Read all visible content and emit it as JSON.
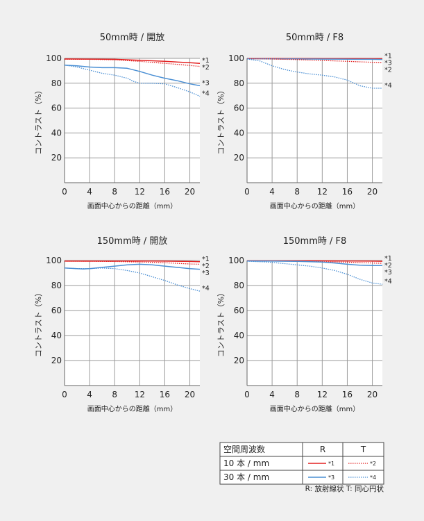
{
  "chart_data": [
    {
      "type": "line",
      "title": "50mm時 / 開放",
      "xlabel": "画面中心からの距離（mm）",
      "ylabel": "コントラスト（%）",
      "xticks": [
        0,
        4,
        8,
        12,
        16,
        20
      ],
      "yticks": [
        20,
        40,
        60,
        80,
        100
      ],
      "xlim": [
        0,
        21.6
      ],
      "ylim": [
        0,
        100
      ],
      "series": [
        {
          "name": "*1",
          "style": "solid",
          "color": "#e32020",
          "x": [
            0,
            4,
            8,
            12,
            16,
            20,
            21.6
          ],
          "y": [
            99.5,
            99.4,
            99.2,
            98.5,
            97.6,
            96.5,
            96
          ]
        },
        {
          "name": "*2",
          "style": "dotted",
          "color": "#e32020",
          "x": [
            0,
            4,
            8,
            12,
            16,
            20,
            21.6
          ],
          "y": [
            99.3,
            99.2,
            98.8,
            97.6,
            96,
            94.3,
            93.5
          ]
        },
        {
          "name": "*3",
          "style": "solid",
          "color": "#4a8fd4",
          "x": [
            0,
            2,
            4,
            6,
            8,
            10,
            12,
            14,
            16,
            18,
            20,
            21.6
          ],
          "y": [
            94.5,
            94,
            93,
            92.5,
            92.5,
            92,
            89.5,
            86.5,
            84,
            82,
            79.5,
            78
          ]
        },
        {
          "name": "*4",
          "style": "dotted",
          "color": "#4a8fd4",
          "x": [
            0,
            2,
            4,
            6,
            8,
            10,
            11,
            12,
            14,
            16,
            18,
            20,
            21.6
          ],
          "y": [
            94.5,
            93,
            90.5,
            88,
            86.5,
            84,
            81.5,
            80,
            80,
            79.5,
            76.5,
            73,
            69.5
          ]
        }
      ]
    },
    {
      "type": "line",
      "title": "50mm時 / F8",
      "xlabel": "画面中心からの距離（mm）",
      "ylabel": "コントラスト（%）",
      "xticks": [
        0,
        4,
        8,
        12,
        16,
        20
      ],
      "yticks": [
        20,
        40,
        60,
        80,
        100
      ],
      "xlim": [
        0,
        21.6
      ],
      "ylim": [
        0,
        100
      ],
      "series": [
        {
          "name": "*1",
          "style": "solid",
          "color": "#e32020",
          "x": [
            0,
            4,
            8,
            12,
            16,
            20,
            21.6
          ],
          "y": [
            99.9,
            99.9,
            99.9,
            99.8,
            99.8,
            99.7,
            99.7
          ]
        },
        {
          "name": "*3",
          "style": "solid",
          "color": "#4a8fd4",
          "x": [
            0,
            4,
            8,
            12,
            16,
            20,
            21.6
          ],
          "y": [
            99.7,
            99.6,
            99.5,
            99.4,
            99.3,
            99.2,
            99.1
          ]
        },
        {
          "name": "*2",
          "style": "dotted",
          "color": "#e32020",
          "x": [
            0,
            4,
            8,
            12,
            16,
            20,
            21.6
          ],
          "y": [
            99.7,
            99.5,
            99,
            98.3,
            97.6,
            96.8,
            96.5
          ]
        },
        {
          "name": "*4",
          "style": "dotted",
          "color": "#4a8fd4",
          "x": [
            0,
            2,
            4,
            6,
            8,
            10,
            12,
            14,
            16,
            18,
            20,
            21.6
          ],
          "y": [
            99.5,
            98,
            94,
            91,
            89,
            87.5,
            86.5,
            85,
            82.5,
            78,
            76,
            76
          ]
        }
      ]
    },
    {
      "type": "line",
      "title": "150mm時 / 開放",
      "xlabel": "画面中心からの距離（mm）",
      "ylabel": "コントラスト（%）",
      "xticks": [
        0,
        4,
        8,
        12,
        16,
        20
      ],
      "yticks": [
        20,
        40,
        60,
        80,
        100
      ],
      "xlim": [
        0,
        21.6
      ],
      "ylim": [
        0,
        100
      ],
      "series": [
        {
          "name": "*1",
          "style": "solid",
          "color": "#e32020",
          "x": [
            0,
            4,
            8,
            12,
            16,
            20,
            21.6
          ],
          "y": [
            99.5,
            99.5,
            99.5,
            99.6,
            99.5,
            99.2,
            99
          ]
        },
        {
          "name": "*2",
          "style": "dotted",
          "color": "#e32020",
          "x": [
            0,
            4,
            8,
            12,
            16,
            20,
            21.6
          ],
          "y": [
            99.5,
            99.4,
            99.2,
            98.8,
            98.2,
            97.2,
            97
          ]
        },
        {
          "name": "*3",
          "style": "solid",
          "color": "#4a8fd4",
          "x": [
            0,
            2,
            3,
            4,
            6,
            8,
            10,
            12,
            14,
            16,
            18,
            20,
            21.6
          ],
          "y": [
            94,
            93.5,
            93.2,
            93.5,
            94.5,
            95.5,
            96.5,
            97,
            96.5,
            95.5,
            94.5,
            93.5,
            93
          ]
        },
        {
          "name": "*4",
          "style": "dotted",
          "color": "#4a8fd4",
          "x": [
            0,
            2,
            4,
            6,
            8,
            10,
            12,
            14,
            16,
            18,
            20,
            21.6
          ],
          "y": [
            94,
            93.5,
            93.5,
            94,
            93.5,
            92,
            90,
            87,
            84,
            80.5,
            77.5,
            75.5
          ]
        }
      ]
    },
    {
      "type": "line",
      "title": "150mm時 / F8",
      "xlabel": "画面中心からの距離（mm）",
      "ylabel": "コントラスト（%）",
      "xticks": [
        0,
        4,
        8,
        12,
        16,
        20
      ],
      "yticks": [
        20,
        40,
        60,
        80,
        100
      ],
      "xlim": [
        0,
        21.6
      ],
      "ylim": [
        0,
        100
      ],
      "series": [
        {
          "name": "*1",
          "style": "solid",
          "color": "#e32020",
          "x": [
            0,
            4,
            8,
            12,
            16,
            20,
            21.6
          ],
          "y": [
            99.8,
            99.8,
            99.8,
            99.7,
            99.6,
            99.5,
            99.4
          ]
        },
        {
          "name": "*2",
          "style": "dotted",
          "color": "#e32020",
          "x": [
            0,
            4,
            8,
            12,
            16,
            20,
            21.6
          ],
          "y": [
            99.7,
            99.6,
            99.4,
            99,
            98.6,
            98,
            97.8
          ]
        },
        {
          "name": "*3",
          "style": "solid",
          "color": "#4a8fd4",
          "x": [
            0,
            4,
            8,
            12,
            14,
            16,
            18,
            20,
            21.6
          ],
          "y": [
            99.6,
            99.5,
            99.3,
            98.8,
            98,
            97,
            96.3,
            96,
            96
          ]
        },
        {
          "name": "*4",
          "style": "dotted",
          "color": "#4a8fd4",
          "x": [
            0,
            2,
            4,
            6,
            8,
            10,
            12,
            14,
            16,
            18,
            20,
            21.6
          ],
          "y": [
            99.5,
            99,
            98.5,
            97.5,
            96.5,
            95.5,
            94,
            92,
            89,
            85,
            82,
            81
          ]
        }
      ]
    }
  ],
  "legend_table": {
    "header": [
      "空間周波数",
      "R",
      "T"
    ],
    "rows": [
      {
        "label": "10 本 / mm",
        "r_mark": "*1",
        "t_mark": "*2"
      },
      {
        "label": "30 本 / mm",
        "r_mark": "*3",
        "t_mark": "*4"
      }
    ],
    "note": "R: 放射線状  T: 同心円状"
  },
  "colors": {
    "red": "#e32020",
    "blue": "#4a8fd4",
    "grid": "#9a9a9a",
    "plot_background": "#ffffff",
    "page_background": "#f0f0f0"
  }
}
